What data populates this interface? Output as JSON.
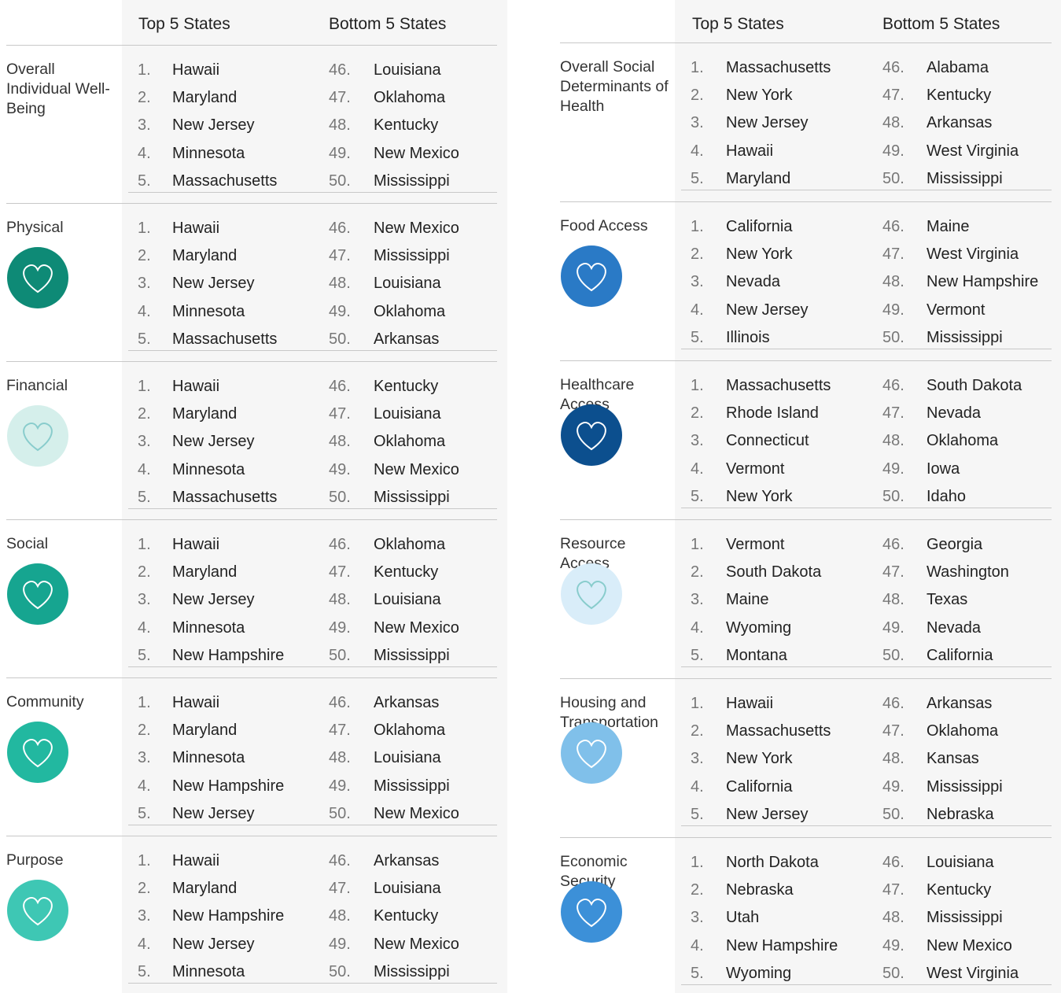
{
  "left": {
    "header": {
      "top": "Top 5 States",
      "bottom": "Bottom 5 States"
    },
    "sections": [
      {
        "label": "Overall Individual Well-Being",
        "rows": [
          [
            "1.",
            "Hawaii",
            "46.",
            "Louisiana"
          ],
          [
            "2.",
            "Maryland",
            "47.",
            "Oklahoma"
          ],
          [
            "3.",
            "New Jersey",
            "48.",
            "Kentucky"
          ],
          [
            "4.",
            "Minnesota",
            "49.",
            "New Mexico"
          ],
          [
            "5.",
            "Massachusetts",
            "50.",
            "Mississippi"
          ]
        ]
      },
      {
        "label": "Physical",
        "rows": [
          [
            "1.",
            "Hawaii",
            "46.",
            "New Mexico"
          ],
          [
            "2.",
            "Maryland",
            "47.",
            "Mississippi"
          ],
          [
            "3.",
            "New Jersey",
            "48.",
            "Louisiana"
          ],
          [
            "4.",
            "Minnesota",
            "49.",
            "Oklahoma"
          ],
          [
            "5.",
            "Massachusetts",
            "50.",
            "Arkansas"
          ]
        ]
      },
      {
        "label": "Financial",
        "rows": [
          [
            "1.",
            "Hawaii",
            "46.",
            "Kentucky"
          ],
          [
            "2.",
            "Maryland",
            "47.",
            "Louisiana"
          ],
          [
            "3.",
            "New Jersey",
            "48.",
            "Oklahoma"
          ],
          [
            "4.",
            "Minnesota",
            "49.",
            "New Mexico"
          ],
          [
            "5.",
            "Massachusetts",
            "50.",
            "Mississippi"
          ]
        ]
      },
      {
        "label": "Social",
        "rows": [
          [
            "1.",
            "Hawaii",
            "46.",
            "Oklahoma"
          ],
          [
            "2.",
            "Maryland",
            "47.",
            "Kentucky"
          ],
          [
            "3.",
            "New Jersey",
            "48.",
            "Louisiana"
          ],
          [
            "4.",
            "Minnesota",
            "49.",
            "New Mexico"
          ],
          [
            "5.",
            "New Hampshire",
            "50.",
            "Mississippi"
          ]
        ]
      },
      {
        "label": "Community",
        "rows": [
          [
            "1.",
            "Hawaii",
            "46.",
            "Arkansas"
          ],
          [
            "2.",
            "Maryland",
            "47.",
            "Oklahoma"
          ],
          [
            "3.",
            "Minnesota",
            "48.",
            "Louisiana"
          ],
          [
            "4.",
            "New Hampshire",
            "49.",
            "Mississippi"
          ],
          [
            "5.",
            "New Jersey",
            "50.",
            "New Mexico"
          ]
        ]
      },
      {
        "label": "Purpose",
        "rows": [
          [
            "1.",
            "Hawaii",
            "46.",
            "Arkansas"
          ],
          [
            "2.",
            "Maryland",
            "47.",
            "Louisiana"
          ],
          [
            "3.",
            "New Hampshire",
            "48.",
            "Kentucky"
          ],
          [
            "4.",
            "New Jersey",
            "49.",
            "New Mexico"
          ],
          [
            "5.",
            "Minnesota",
            "50.",
            "Mississippi"
          ]
        ]
      }
    ]
  },
  "right": {
    "header": {
      "top": "Top 5 States",
      "bottom": "Bottom 5 States"
    },
    "sections": [
      {
        "label": "Overall Social Determinants of Health",
        "rows": [
          [
            "1.",
            "Massachusetts",
            "46.",
            "Alabama"
          ],
          [
            "2.",
            "New York",
            "47.",
            "Kentucky"
          ],
          [
            "3.",
            "New Jersey",
            "48.",
            "Arkansas"
          ],
          [
            "4.",
            "Hawaii",
            "49.",
            "West Virginia"
          ],
          [
            "5.",
            "Maryland",
            "50.",
            "Mississippi"
          ]
        ]
      },
      {
        "label": "Food Access",
        "rows": [
          [
            "1.",
            "California",
            "46.",
            "Maine"
          ],
          [
            "2.",
            "New York",
            "47.",
            "West Virginia"
          ],
          [
            "3.",
            "Nevada",
            "48.",
            "New Hampshire"
          ],
          [
            "4.",
            "New Jersey",
            "49.",
            "Vermont"
          ],
          [
            "5.",
            "Illinois",
            "50.",
            "Mississippi"
          ]
        ]
      },
      {
        "label": "Healthcare Access",
        "rows": [
          [
            "1.",
            "Massachusetts",
            "46.",
            "South Dakota"
          ],
          [
            "2.",
            "Rhode Island",
            "47.",
            "Nevada"
          ],
          [
            "3.",
            "Connecticut",
            "48.",
            "Oklahoma"
          ],
          [
            "4.",
            "Vermont",
            "49.",
            "Iowa"
          ],
          [
            "5.",
            "New York",
            "50.",
            "Idaho"
          ]
        ]
      },
      {
        "label": "Resource Access",
        "rows": [
          [
            "1.",
            "Vermont",
            "46.",
            "Georgia"
          ],
          [
            "2.",
            "South Dakota",
            "47.",
            "Washington"
          ],
          [
            "3.",
            "Maine",
            "48.",
            "Texas"
          ],
          [
            "4.",
            "Wyoming",
            "49.",
            "Nevada"
          ],
          [
            "5.",
            "Montana",
            "50.",
            "California"
          ]
        ]
      },
      {
        "label": "Housing and Transportation",
        "rows": [
          [
            "1.",
            "Hawaii",
            "46.",
            "Arkansas"
          ],
          [
            "2.",
            "Massachusetts",
            "47.",
            "Oklahoma"
          ],
          [
            "3.",
            "New York",
            "48.",
            "Kansas"
          ],
          [
            "4.",
            "California",
            "49.",
            "Mississippi"
          ],
          [
            "5.",
            "New Jersey",
            "50.",
            "Nebraska"
          ]
        ]
      },
      {
        "label": "Economic Security",
        "rows": [
          [
            "1.",
            "North Dakota",
            "46.",
            "Louisiana"
          ],
          [
            "2.",
            "Nebraska",
            "47.",
            "Kentucky"
          ],
          [
            "3.",
            "Utah",
            "48.",
            "Mississippi"
          ],
          [
            "4.",
            "New Hampshire",
            "49.",
            "New Mexico"
          ],
          [
            "5.",
            "Wyoming",
            "50.",
            "West Virginia"
          ]
        ]
      }
    ]
  }
}
